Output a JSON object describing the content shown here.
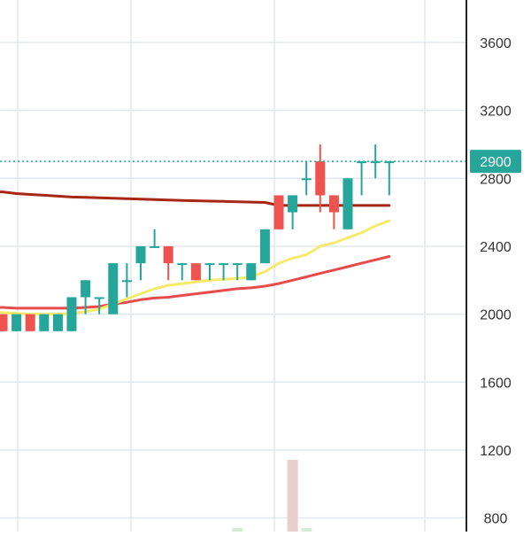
{
  "chart_data": {
    "type": "candlestick",
    "title": "",
    "xlabel": "",
    "ylabel": "",
    "y_axis_position": "right",
    "ylim": [
      720,
      3850
    ],
    "y_ticks": [
      "800",
      "1200",
      "1600",
      "2000",
      "2400",
      "2800",
      "3200",
      "3600"
    ],
    "grid": true,
    "current_price": {
      "label": "2900",
      "value": 2900
    },
    "colors": {
      "up": "#26a69a",
      "down": "#ef5350",
      "price_line": "#26a69a",
      "ma_slow": "#a52714",
      "ma_mid": "#e84b4b",
      "ma_fast": "#f5ea6b",
      "grid": "#e3e8ee",
      "axis_line": "#222222",
      "axis_text": "#333333",
      "volume_down": "#e8cfcd",
      "volume_up": "#d4ecd6"
    },
    "candles": [
      {
        "o": 2000,
        "h": 2000,
        "l": 1900,
        "c": 1900
      },
      {
        "o": 1900,
        "h": 2000,
        "l": 1900,
        "c": 2000
      },
      {
        "o": 2000,
        "h": 2000,
        "l": 1900,
        "c": 1900
      },
      {
        "o": 1900,
        "h": 2000,
        "l": 1900,
        "c": 2000
      },
      {
        "o": 1900,
        "h": 2000,
        "l": 1900,
        "c": 2000
      },
      {
        "o": 1900,
        "h": 2100,
        "l": 1900,
        "c": 2100
      },
      {
        "o": 2100,
        "h": 2200,
        "l": 2000,
        "c": 2200
      },
      {
        "o": 2100,
        "h": 2100,
        "l": 2000,
        "c": 2100
      },
      {
        "o": 2000,
        "h": 2300,
        "l": 2000,
        "c": 2300
      },
      {
        "o": 2200,
        "h": 2300,
        "l": 2100,
        "c": 2200
      },
      {
        "o": 2300,
        "h": 2400,
        "l": 2200,
        "c": 2400
      },
      {
        "o": 2400,
        "h": 2500,
        "l": 2400,
        "c": 2400
      },
      {
        "o": 2400,
        "h": 2400,
        "l": 2200,
        "c": 2300
      },
      {
        "o": 2300,
        "h": 2300,
        "l": 2200,
        "c": 2300
      },
      {
        "o": 2300,
        "h": 2300,
        "l": 2200,
        "c": 2200
      },
      {
        "o": 2300,
        "h": 2300,
        "l": 2200,
        "c": 2300
      },
      {
        "o": 2300,
        "h": 2300,
        "l": 2200,
        "c": 2300
      },
      {
        "o": 2300,
        "h": 2300,
        "l": 2200,
        "c": 2300
      },
      {
        "o": 2200,
        "h": 2300,
        "l": 2200,
        "c": 2300
      },
      {
        "o": 2300,
        "h": 2500,
        "l": 2300,
        "c": 2500
      },
      {
        "o": 2700,
        "h": 2700,
        "l": 2500,
        "c": 2500
      },
      {
        "o": 2600,
        "h": 2700,
        "l": 2500,
        "c": 2700
      },
      {
        "o": 2800,
        "h": 2900,
        "l": 2700,
        "c": 2800
      },
      {
        "o": 2900,
        "h": 3000,
        "l": 2600,
        "c": 2700
      },
      {
        "o": 2700,
        "h": 2700,
        "l": 2500,
        "c": 2600
      },
      {
        "o": 2500,
        "h": 2800,
        "l": 2500,
        "c": 2800
      },
      {
        "o": 2900,
        "h": 2900,
        "l": 2700,
        "c": 2900
      },
      {
        "o": 2900,
        "h": 3000,
        "l": 2800,
        "c": 2900
      },
      {
        "o": 2900,
        "h": 2900,
        "l": 2700,
        "c": 2900
      }
    ],
    "series": [
      {
        "role": "ma_slow",
        "values": [
          2720,
          2710,
          2705,
          2700,
          2695,
          2690,
          2688,
          2685,
          2683,
          2680,
          2678,
          2675,
          2672,
          2670,
          2668,
          2666,
          2664,
          2662,
          2660,
          2658,
          2640,
          2640,
          2640,
          2640,
          2640,
          2640,
          2640,
          2640,
          2640
        ]
      },
      {
        "role": "ma_mid",
        "values": [
          2040,
          2035,
          2035,
          2035,
          2035,
          2035,
          2040,
          2045,
          2060,
          2070,
          2085,
          2095,
          2100,
          2110,
          2120,
          2130,
          2140,
          2150,
          2155,
          2165,
          2180,
          2200,
          2220,
          2240,
          2260,
          2280,
          2300,
          2320,
          2340
        ]
      },
      {
        "role": "ma_fast",
        "values": [
          2010,
          2005,
          2000,
          2000,
          2000,
          2005,
          2015,
          2030,
          2060,
          2090,
          2120,
          2150,
          2170,
          2180,
          2190,
          2200,
          2205,
          2210,
          2220,
          2250,
          2300,
          2330,
          2350,
          2400,
          2420,
          2450,
          2480,
          2520,
          2550
        ]
      }
    ],
    "volume": [
      {
        "index": 17,
        "direction": "up",
        "value": 0.02
      },
      {
        "index": 21,
        "direction": "down",
        "value": 0.9
      },
      {
        "index": 22,
        "direction": "up",
        "value": 0.02
      }
    ]
  }
}
